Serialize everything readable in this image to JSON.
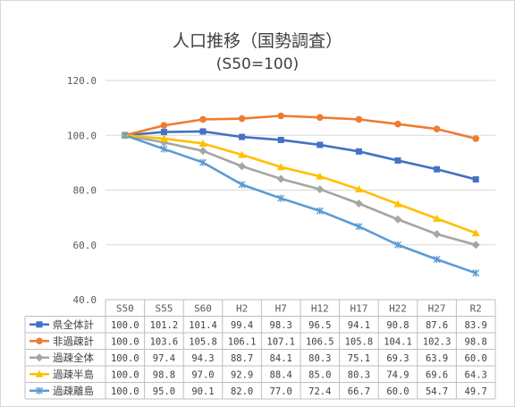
{
  "chart_data": {
    "type": "line",
    "title_line1": "人口推移（国勢調査）",
    "title_line2": "(S50=100)",
    "categories": [
      "S50",
      "S55",
      "S60",
      "H2",
      "H7",
      "H12",
      "H17",
      "H22",
      "H27",
      "R2"
    ],
    "ylim": [
      40,
      120
    ],
    "yticks": [
      40,
      60,
      80,
      100,
      120
    ],
    "ytick_labels": [
      "40.0",
      "60.0",
      "80.0",
      "100.0",
      "120.0"
    ],
    "grid": true,
    "legend_placement": "data-table",
    "series": [
      {
        "name": "県全体計",
        "color": "#4472c4",
        "marker": "square",
        "values": [
          100.0,
          101.2,
          101.4,
          99.4,
          98.3,
          96.5,
          94.1,
          90.8,
          87.6,
          83.9
        ],
        "labels": [
          "100.0",
          "101.2",
          "101.4",
          "99.4",
          "98.3",
          "96.5",
          "94.1",
          "90.8",
          "87.6",
          "83.9"
        ]
      },
      {
        "name": "非過疎計",
        "color": "#ed7d31",
        "marker": "circle",
        "values": [
          100.0,
          103.6,
          105.8,
          106.1,
          107.1,
          106.5,
          105.8,
          104.1,
          102.3,
          98.8
        ],
        "labels": [
          "100.0",
          "103.6",
          "105.8",
          "106.1",
          "107.1",
          "106.5",
          "105.8",
          "104.1",
          "102.3",
          "98.8"
        ]
      },
      {
        "name": "過疎全体",
        "color": "#a5a5a5",
        "marker": "diamond",
        "values": [
          100.0,
          97.4,
          94.3,
          88.7,
          84.1,
          80.3,
          75.1,
          69.3,
          63.9,
          60.0
        ],
        "labels": [
          "100.0",
          "97.4",
          "94.3",
          "88.7",
          "84.1",
          "80.3",
          "75.1",
          "69.3",
          "63.9",
          "60.0"
        ]
      },
      {
        "name": "過疎半島",
        "color": "#ffc000",
        "marker": "triangle",
        "values": [
          100.0,
          98.8,
          97.0,
          92.9,
          88.4,
          85.0,
          80.3,
          74.9,
          69.6,
          64.3
        ],
        "labels": [
          "100.0",
          "98.8",
          "97.0",
          "92.9",
          "88.4",
          "85.0",
          "80.3",
          "74.9",
          "69.6",
          "64.3"
        ]
      },
      {
        "name": "過疎離島",
        "color": "#5b9bd5",
        "marker": "x",
        "values": [
          100.0,
          95.0,
          90.1,
          82.0,
          77.0,
          72.4,
          66.7,
          60.0,
          54.7,
          49.7
        ],
        "labels": [
          "100.0",
          "95.0",
          "90.1",
          "82.0",
          "77.0",
          "72.4",
          "66.7",
          "60.0",
          "54.7",
          "49.7"
        ]
      }
    ]
  }
}
